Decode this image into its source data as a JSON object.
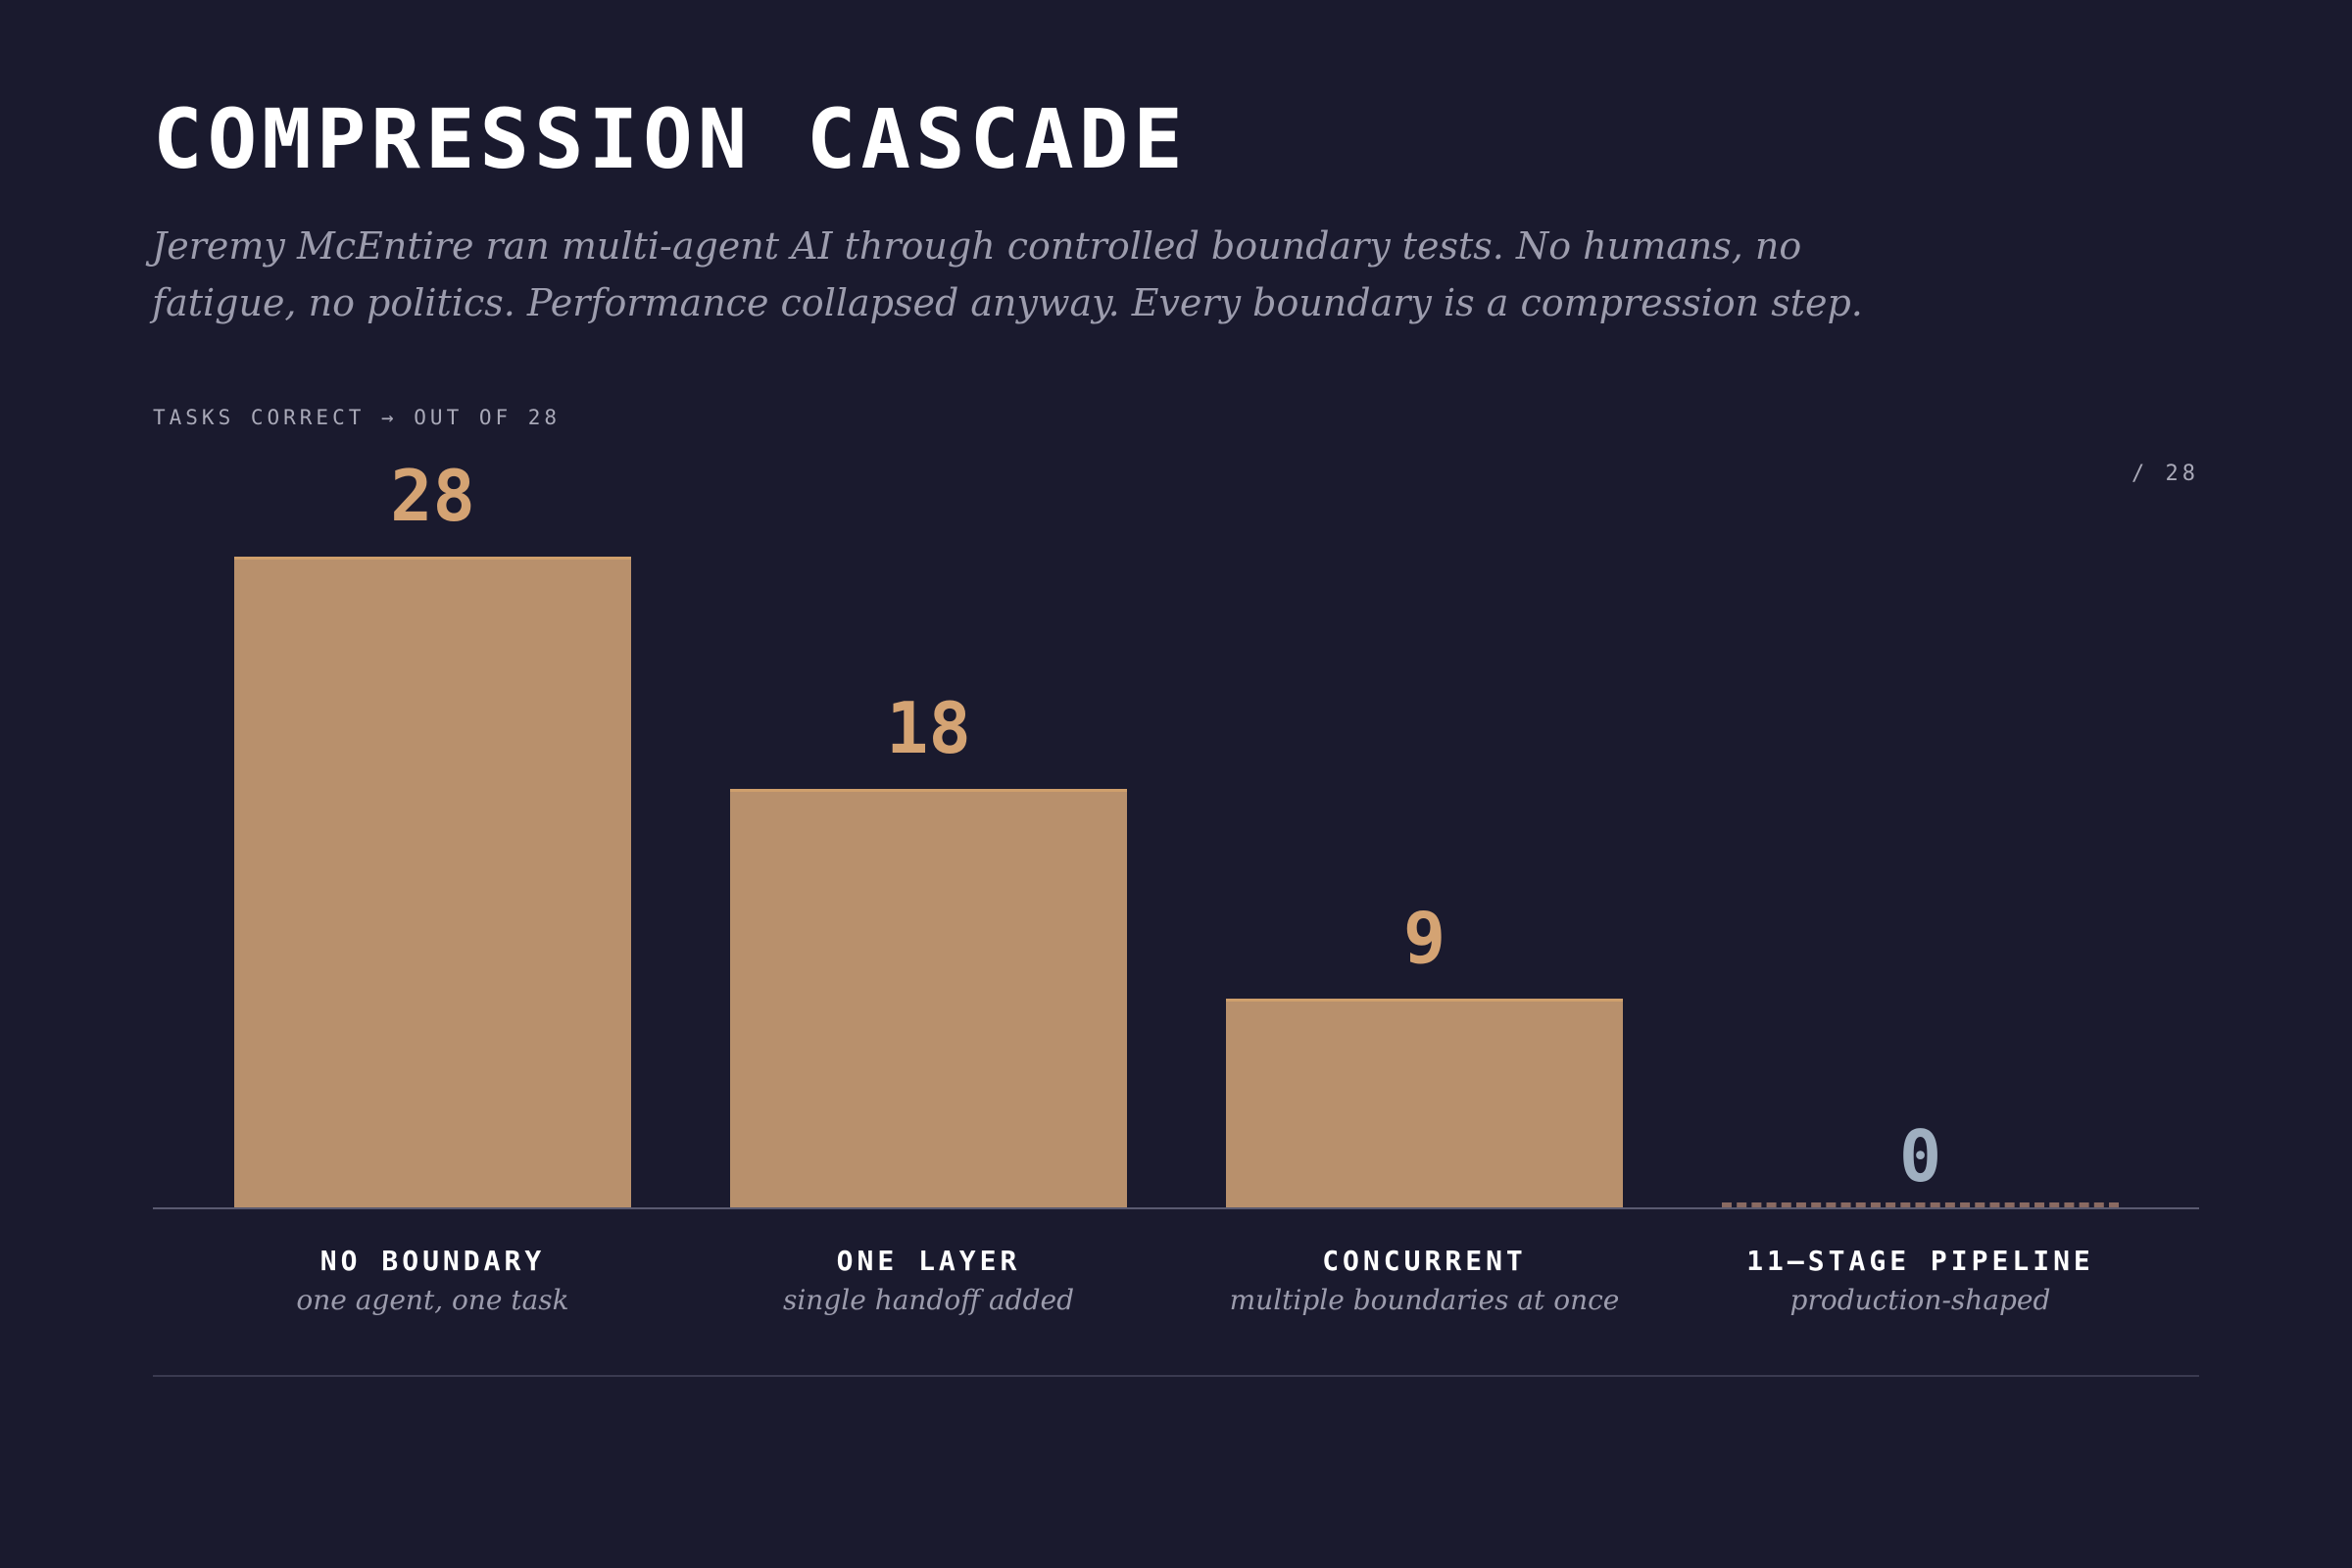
{
  "page": {
    "title": "COMPRESSION CASCADE",
    "subtitle": "Jeremy McEntire ran multi-agent AI through controlled boundary tests. No humans, no fatigue, no politics. Performance collapsed anyway. Every boundary is a compression step.",
    "axis_caption": "TASKS CORRECT → OUT OF 28",
    "max_label": "/ 28"
  },
  "colors": {
    "background": "#1a1a2e",
    "bar": "#b8906c",
    "value_label": "#d4a373",
    "zero_value_label": "#9fafc0",
    "zero_bar_dashes": "#8a6a62"
  },
  "chart_data": {
    "type": "bar",
    "title": "COMPRESSION CASCADE",
    "ylabel": "TASKS CORRECT → OUT OF 28",
    "ylim": [
      0,
      28
    ],
    "grid": false,
    "categories": [
      "NO BOUNDARY",
      "ONE LAYER",
      "CONCURRENT",
      "11–STAGE PIPELINE"
    ],
    "sublabels": [
      "one agent, one task",
      "single handoff added",
      "multiple boundaries at once",
      "production-shaped"
    ],
    "values": [
      28,
      18,
      9,
      0
    ]
  }
}
